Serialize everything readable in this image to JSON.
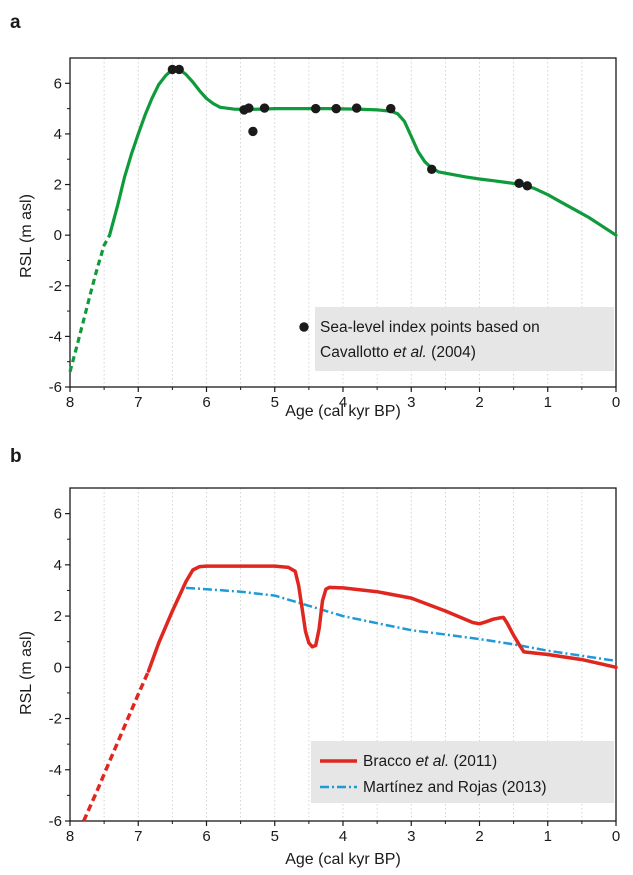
{
  "chart_data": [
    {
      "type": "line",
      "panel": "a",
      "xlabel": "Age (cal kyr BP)",
      "ylabel": "RSL (m asl)",
      "xlim": [
        8,
        0
      ],
      "ylim": [
        -6,
        7
      ],
      "x_ticks": [
        8,
        7,
        6,
        5,
        4,
        3,
        2,
        1,
        0
      ],
      "y_ticks": [
        -6,
        -4,
        -2,
        0,
        2,
        4,
        6
      ],
      "grid": "vertical-dotted",
      "colors": {
        "curve": "#0f9a3c",
        "points": "#1a1a1a",
        "legend_bg": "#e6e6e6"
      },
      "series": [
        {
          "kind": "line",
          "dashed_x": [
            [
              8.0,
              -5.4
            ],
            [
              7.9,
              -4.4
            ],
            [
              7.8,
              -3.35
            ],
            [
              7.7,
              -2.3
            ],
            [
              7.6,
              -1.3
            ],
            [
              7.5,
              -0.4
            ],
            [
              7.42,
              0.0
            ]
          ],
          "x": [
            7.42,
            7.3,
            7.2,
            7.1,
            7.0,
            6.9,
            6.8,
            6.7,
            6.6,
            6.5,
            6.4,
            6.3,
            6.2,
            6.1,
            6.0,
            5.9,
            5.8,
            5.6,
            5.4,
            5.2,
            5.0,
            4.6,
            4.2,
            3.8,
            3.5,
            3.3,
            3.2,
            3.1,
            3.0,
            2.9,
            2.8,
            2.7,
            2.6,
            2.4,
            2.2,
            2.0,
            1.8,
            1.6,
            1.4,
            1.2,
            1.0,
            0.8,
            0.6,
            0.4,
            0.2,
            0.0
          ],
          "y": [
            0.0,
            1.2,
            2.3,
            3.2,
            4.0,
            4.75,
            5.4,
            5.95,
            6.3,
            6.55,
            6.55,
            6.35,
            6.05,
            5.7,
            5.4,
            5.2,
            5.05,
            4.98,
            4.97,
            4.98,
            5.0,
            5.0,
            5.0,
            4.98,
            4.95,
            4.9,
            4.8,
            4.5,
            3.9,
            3.3,
            2.9,
            2.65,
            2.5,
            2.4,
            2.3,
            2.22,
            2.15,
            2.08,
            2.0,
            1.85,
            1.6,
            1.3,
            1.0,
            0.7,
            0.35,
            0.0
          ]
        },
        {
          "kind": "scatter",
          "name": "Sea-level index points based on",
          "x": [
            6.5,
            6.4,
            5.45,
            5.38,
            5.32,
            5.15,
            4.4,
            4.1,
            3.8,
            3.3,
            2.7,
            1.42,
            1.3
          ],
          "y": [
            6.55,
            6.55,
            4.95,
            5.02,
            4.1,
            5.02,
            5.0,
            5.0,
            5.02,
            5.0,
            2.6,
            2.05,
            1.95
          ]
        }
      ],
      "legend": {
        "placement": "bottom-right",
        "line1": "Sea-level index points based on",
        "line2_a": "Cavallotto ",
        "line2_b": "et al.",
        "line2_c": " (2004)"
      }
    },
    {
      "type": "line",
      "panel": "b",
      "xlabel": "Age (cal kyr BP)",
      "ylabel": "RSL (m asl)",
      "xlim": [
        8,
        0
      ],
      "ylim": [
        -6,
        7
      ],
      "x_ticks": [
        8,
        7,
        6,
        5,
        4,
        3,
        2,
        1,
        0
      ],
      "y_ticks": [
        -6,
        -4,
        -2,
        0,
        2,
        4,
        6
      ],
      "grid": "vertical-dotted",
      "colors": {
        "bracco": "#e0271f",
        "martinez": "#1e9ad6",
        "legend_bg": "#e6e6e6"
      },
      "series": [
        {
          "name": "Bracco et al. (2011)",
          "dashed_x": [
            [
              7.8,
              -6.0
            ],
            [
              7.6,
              -4.8
            ],
            [
              7.4,
              -3.55
            ],
            [
              7.2,
              -2.3
            ],
            [
              7.0,
              -1.05
            ],
            [
              6.85,
              -0.15
            ]
          ],
          "x": [
            6.85,
            6.7,
            6.5,
            6.3,
            6.2,
            6.1,
            6.0,
            5.5,
            5.0,
            4.8,
            4.7,
            4.65,
            4.6,
            4.55,
            4.5,
            4.45,
            4.4,
            4.35,
            4.3,
            4.25,
            4.2,
            4.0,
            3.5,
            3.0,
            2.5,
            2.1,
            2.0,
            1.9,
            1.8,
            1.7,
            1.65,
            1.6,
            1.5,
            1.4,
            1.35,
            1.0,
            0.5,
            0.2,
            0.0
          ],
          "y": [
            -0.15,
            0.95,
            2.2,
            3.35,
            3.8,
            3.93,
            3.95,
            3.95,
            3.95,
            3.9,
            3.75,
            3.2,
            2.3,
            1.4,
            0.95,
            0.8,
            0.85,
            1.5,
            2.6,
            3.05,
            3.12,
            3.1,
            2.95,
            2.7,
            2.2,
            1.75,
            1.7,
            1.78,
            1.88,
            1.93,
            1.95,
            1.75,
            1.25,
            0.8,
            0.6,
            0.5,
            0.3,
            0.12,
            0.0
          ]
        },
        {
          "name": "Martínez and Rojas (2013)",
          "x": [
            6.3,
            6.0,
            5.5,
            5.0,
            4.5,
            4.0,
            3.5,
            3.0,
            2.5,
            2.0,
            1.5,
            1.0,
            0.5,
            0.0
          ],
          "y": [
            3.1,
            3.05,
            2.95,
            2.8,
            2.4,
            2.0,
            1.72,
            1.45,
            1.28,
            1.1,
            0.9,
            0.65,
            0.45,
            0.25
          ]
        }
      ],
      "legend": {
        "placement": "bottom-right",
        "bracco_a": "Bracco ",
        "bracco_b": "et al.",
        "bracco_c": " (2011)",
        "martinez": "Martínez and Rojas (2013)"
      }
    }
  ]
}
